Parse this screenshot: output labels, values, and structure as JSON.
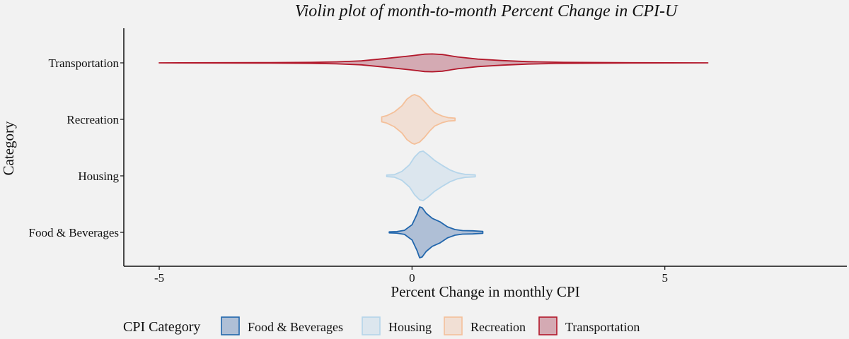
{
  "chart_data": {
    "type": "violin",
    "title": "Violin plot of month-to-month Percent Change in CPI-U",
    "xlabel": "Percent Change in monthly CPI",
    "ylabel": "Category",
    "xlim": [
      -5.7,
      8.6
    ],
    "xticks": [
      -5,
      0,
      5
    ],
    "xtick_labels": [
      "-5",
      "0",
      "5"
    ],
    "categories": [
      "Food & Beverages",
      "Housing",
      "Recreation",
      "Transportation"
    ],
    "grid": false,
    "legend": {
      "title": "CPI Category",
      "position": "bottom",
      "entries": [
        "Food & Beverages",
        "Housing",
        "Recreation",
        "Transportation"
      ]
    },
    "series": [
      {
        "name": "Food & Beverages",
        "color": "#2166ac",
        "fill": "#afbfd6",
        "min": -0.45,
        "max": 1.4,
        "density": [
          [
            -0.45,
            0.02
          ],
          [
            -0.3,
            0.03
          ],
          [
            -0.15,
            0.08
          ],
          [
            0.0,
            0.3
          ],
          [
            0.1,
            0.72
          ],
          [
            0.15,
            1.0
          ],
          [
            0.2,
            0.97
          ],
          [
            0.28,
            0.75
          ],
          [
            0.4,
            0.55
          ],
          [
            0.55,
            0.42
          ],
          [
            0.7,
            0.22
          ],
          [
            0.85,
            0.11
          ],
          [
            1.0,
            0.07
          ],
          [
            1.2,
            0.06
          ],
          [
            1.4,
            0.04
          ]
        ]
      },
      {
        "name": "Housing",
        "color": "#b5d5ea",
        "fill": "#dce6ee",
        "min": -0.5,
        "max": 1.25,
        "density": [
          [
            -0.5,
            0.03
          ],
          [
            -0.35,
            0.05
          ],
          [
            -0.2,
            0.18
          ],
          [
            -0.05,
            0.45
          ],
          [
            0.05,
            0.76
          ],
          [
            0.15,
            0.97
          ],
          [
            0.22,
            1.0
          ],
          [
            0.32,
            0.85
          ],
          [
            0.45,
            0.62
          ],
          [
            0.6,
            0.42
          ],
          [
            0.75,
            0.24
          ],
          [
            0.9,
            0.12
          ],
          [
            1.05,
            0.06
          ],
          [
            1.25,
            0.04
          ]
        ]
      },
      {
        "name": "Recreation",
        "color": "#f4c09a",
        "fill": "#f1dfd4",
        "min": -0.6,
        "max": 0.85,
        "density": [
          [
            -0.6,
            0.1
          ],
          [
            -0.5,
            0.15
          ],
          [
            -0.35,
            0.3
          ],
          [
            -0.2,
            0.55
          ],
          [
            -0.1,
            0.82
          ],
          [
            0.0,
            0.97
          ],
          [
            0.05,
            1.0
          ],
          [
            0.15,
            0.92
          ],
          [
            0.25,
            0.72
          ],
          [
            0.35,
            0.47
          ],
          [
            0.45,
            0.27
          ],
          [
            0.6,
            0.13
          ],
          [
            0.72,
            0.07
          ],
          [
            0.85,
            0.05
          ]
        ]
      },
      {
        "name": "Transportation",
        "color": "#b2182b",
        "fill": "#d4aab3",
        "min": -5.0,
        "max": 5.85,
        "density": [
          [
            -5.0,
            0.0
          ],
          [
            -3.0,
            0.02
          ],
          [
            -2.0,
            0.05
          ],
          [
            -1.5,
            0.1
          ],
          [
            -1.0,
            0.2
          ],
          [
            -0.5,
            0.45
          ],
          [
            0.0,
            0.72
          ],
          [
            0.25,
            0.88
          ],
          [
            0.4,
            0.9
          ],
          [
            0.6,
            0.84
          ],
          [
            0.9,
            0.6
          ],
          [
            1.3,
            0.38
          ],
          [
            1.8,
            0.23
          ],
          [
            2.3,
            0.12
          ],
          [
            3.0,
            0.05
          ],
          [
            4.0,
            0.02
          ],
          [
            5.85,
            0.0
          ]
        ]
      }
    ]
  }
}
